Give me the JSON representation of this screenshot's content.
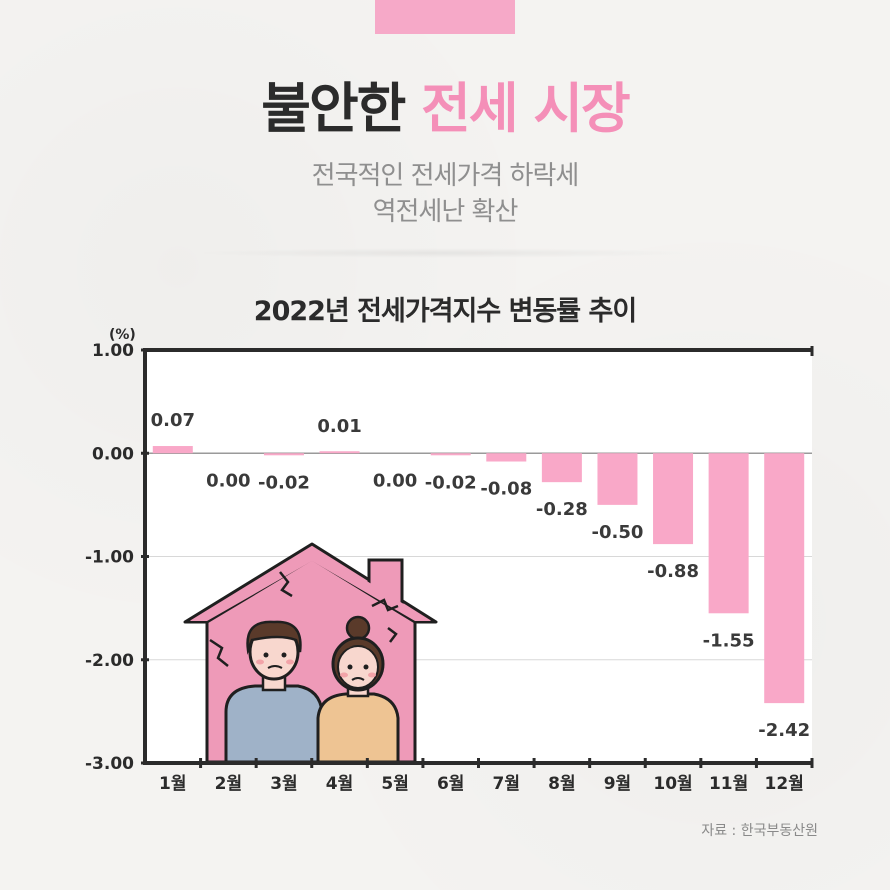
{
  "header": {
    "title_dark": "불안한",
    "title_pink": "전세 시장",
    "subtitle_line1": "전국적인 전세가격 하락세",
    "subtitle_line2": "역전세난 확산"
  },
  "source": "자료 : 한국부동산원",
  "illustration": "house-couple-icon",
  "colors": {
    "bar": "#f9a8c8",
    "title_accent": "#f48fb8",
    "tab": "#f6a9c8",
    "house": "#ee9ab8"
  },
  "chart_data": {
    "type": "bar",
    "title": "2022년 전세가격지수 변동률 추이",
    "ylabel": "(%)",
    "xlabel": "",
    "categories": [
      "1월",
      "2월",
      "3월",
      "4월",
      "5월",
      "6월",
      "7월",
      "8월",
      "9월",
      "10월",
      "11월",
      "12월"
    ],
    "values": [
      0.07,
      0.0,
      -0.02,
      0.01,
      0.0,
      -0.02,
      -0.08,
      -0.28,
      -0.5,
      -0.88,
      -1.55,
      -2.42
    ],
    "value_labels": [
      "0.07",
      "0.00",
      "-0.02",
      "0.01",
      "0.00",
      "-0.02",
      "-0.08",
      "-0.28",
      "-0.50",
      "-0.88",
      "-1.55",
      "-2.42"
    ],
    "ylim": [
      -3.0,
      1.0
    ],
    "yticks": [
      1.0,
      0.0,
      -1.0,
      -2.0,
      -3.0
    ],
    "ytick_labels": [
      "1.00",
      "0.00",
      "-1.00",
      "-2.00",
      "-3.00"
    ],
    "grid": true,
    "legend": "none"
  }
}
